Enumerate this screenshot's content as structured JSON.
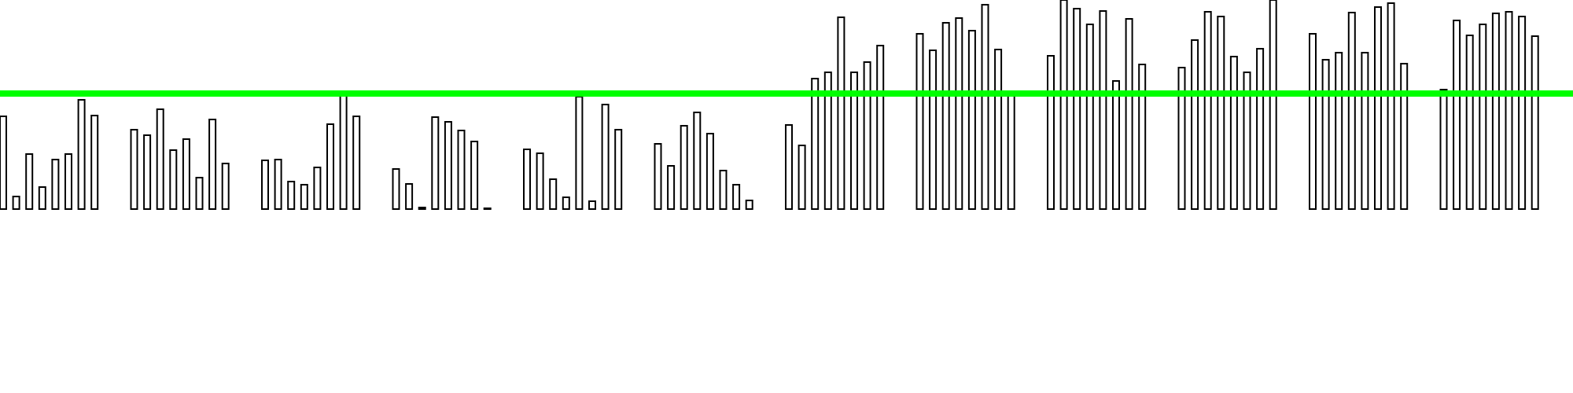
{
  "chart_data": {
    "type": "bar",
    "groups": 12,
    "bars_per_group": 8,
    "ylim": [
      0,
      266
    ],
    "reference_line": {
      "value": 147,
      "color": "#00ff00"
    },
    "bar_fill": "#ffffff",
    "bar_stroke": "#000000",
    "values": [
      [
        118,
        16,
        70,
        28,
        63,
        70,
        139,
        119
      ],
      [
        101,
        94,
        127,
        75,
        89,
        40,
        114,
        58
      ],
      [
        62,
        63,
        35,
        31,
        53,
        108,
        144,
        118
      ],
      [
        51,
        32,
        2,
        117,
        111,
        100,
        86,
        0
      ],
      [
        76,
        71,
        38,
        15,
        143,
        10,
        133,
        101
      ],
      [
        83,
        55,
        106,
        123,
        96,
        49,
        31,
        11
      ],
      [
        107,
        81,
        166,
        174,
        244,
        174,
        187,
        208
      ],
      [
        223,
        202,
        237,
        243,
        227,
        260,
        203,
        144
      ],
      [
        195,
        266,
        255,
        235,
        252,
        163,
        242,
        184
      ],
      [
        180,
        215,
        251,
        245,
        194,
        174,
        204,
        266
      ],
      [
        223,
        190,
        199,
        250,
        199,
        257,
        262,
        185
      ],
      [
        152,
        240,
        221,
        235,
        249,
        251,
        245,
        220
      ]
    ]
  }
}
